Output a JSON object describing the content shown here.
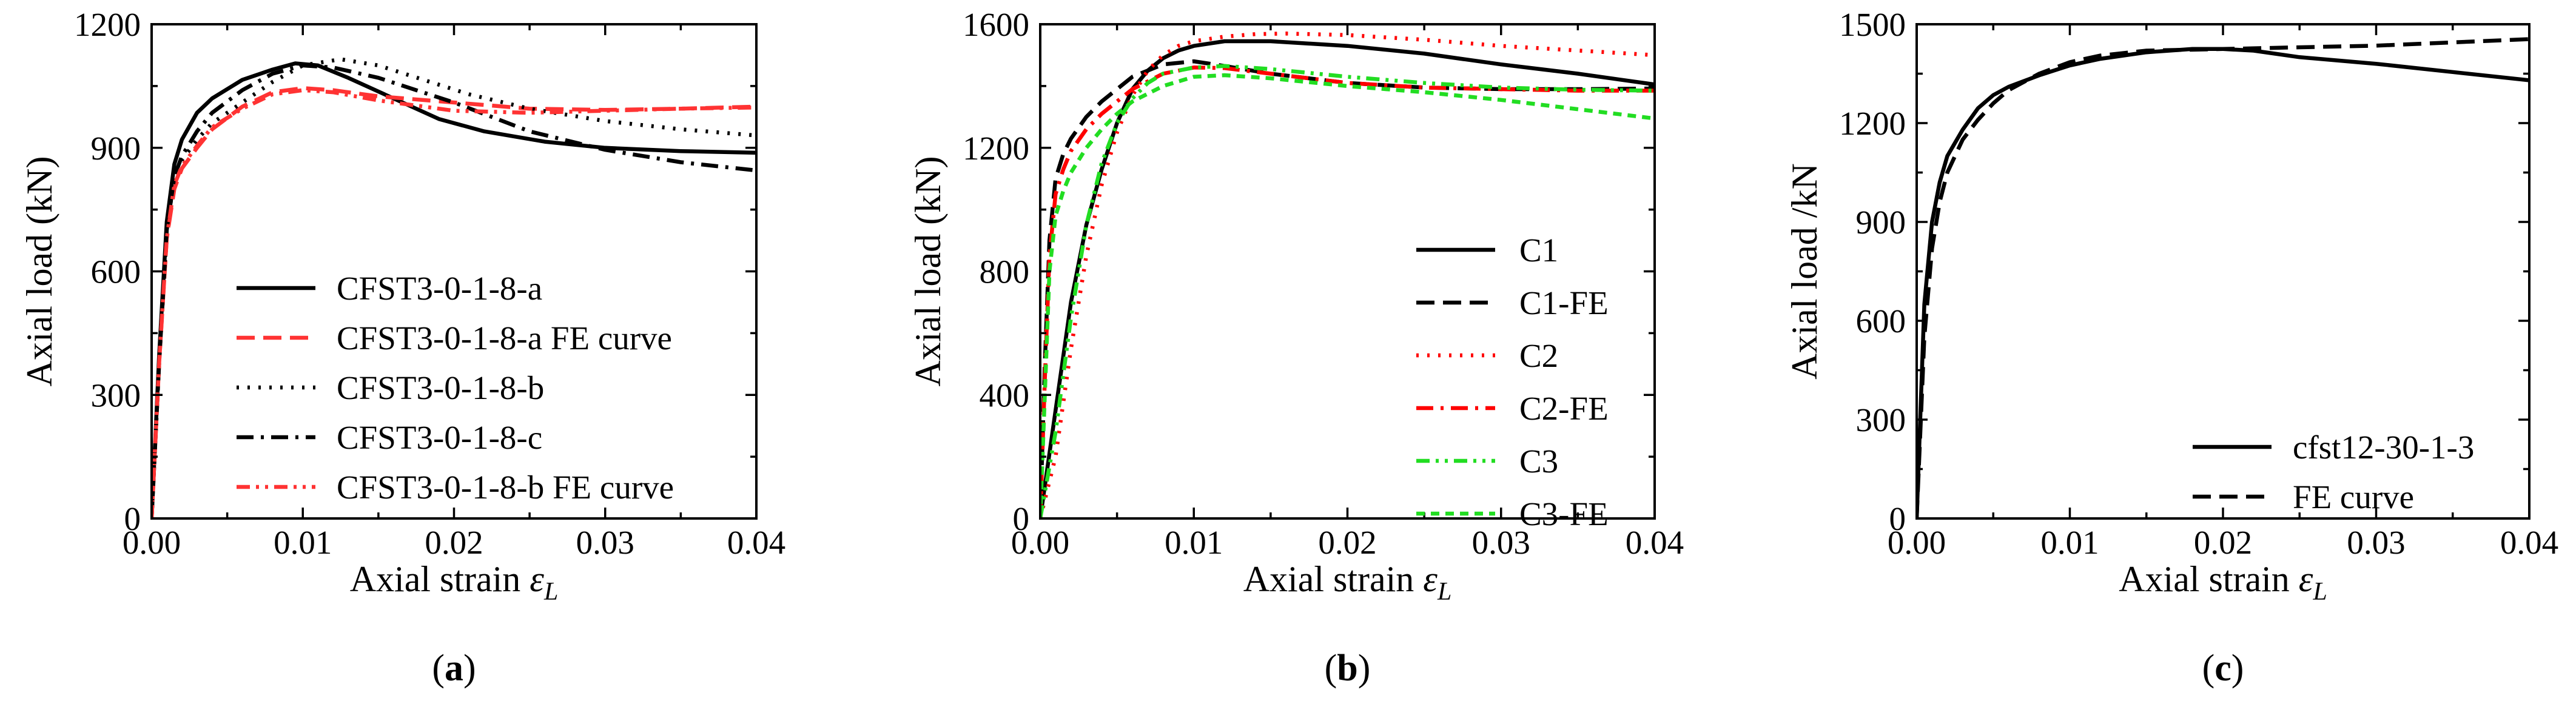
{
  "chart_data": [
    {
      "type": "line",
      "panel_label": "a",
      "xlabel": "Axial strain ",
      "xlabel_symbol": "ε",
      "xlabel_subscript": "L",
      "ylabel": "Axial load (kN)",
      "xlim": [
        0,
        0.04
      ],
      "ylim": [
        0,
        1200
      ],
      "x_ticks": [
        0,
        0.01,
        0.02,
        0.03,
        0.04
      ],
      "x_tick_labels": [
        "0.00",
        "0.01",
        "0.02",
        "0.03",
        "0.04"
      ],
      "y_ticks": [
        0,
        300,
        600,
        900,
        1200
      ],
      "y_tick_labels": [
        "0",
        "300",
        "600",
        "900",
        "1200"
      ],
      "legend_position": "bottom-right",
      "series": [
        {
          "name": "CFST3-0-1-8-a",
          "color": "#000000",
          "dash": "solid",
          "x": [
            0,
            0.0005,
            0.001,
            0.0015,
            0.002,
            0.003,
            0.004,
            0.006,
            0.008,
            0.0095,
            0.011,
            0.013,
            0.016,
            0.019,
            0.022,
            0.026,
            0.03,
            0.035,
            0.04
          ],
          "y": [
            0,
            400,
            720,
            860,
            920,
            985,
            1020,
            1065,
            1090,
            1105,
            1100,
            1070,
            1020,
            970,
            940,
            915,
            900,
            892,
            888
          ]
        },
        {
          "name": "CFST3-0-1-8-a FE curve",
          "color": "#ff3333",
          "dash": "long-dash",
          "x": [
            0,
            0.0005,
            0.001,
            0.0015,
            0.002,
            0.003,
            0.004,
            0.006,
            0.008,
            0.01,
            0.012,
            0.015,
            0.02,
            0.025,
            0.03,
            0.035,
            0.04
          ],
          "y": [
            0,
            380,
            680,
            800,
            850,
            900,
            945,
            1000,
            1035,
            1045,
            1040,
            1025,
            1010,
            995,
            992,
            995,
            1000
          ]
        },
        {
          "name": "CFST3-0-1-8-b",
          "color": "#000000",
          "dash": "dot",
          "x": [
            0,
            0.0005,
            0.001,
            0.0015,
            0.002,
            0.003,
            0.004,
            0.006,
            0.008,
            0.01,
            0.0125,
            0.015,
            0.018,
            0.021,
            0.025,
            0.03,
            0.035,
            0.04
          ],
          "y": [
            0,
            380,
            700,
            830,
            870,
            920,
            960,
            1010,
            1060,
            1100,
            1115,
            1100,
            1065,
            1030,
            995,
            965,
            945,
            930
          ]
        },
        {
          "name": "CFST3-0-1-8-c",
          "color": "#000000",
          "dash": "dash-dot",
          "x": [
            0,
            0.0005,
            0.001,
            0.0015,
            0.002,
            0.003,
            0.004,
            0.006,
            0.008,
            0.01,
            0.012,
            0.015,
            0.02,
            0.025,
            0.03,
            0.035,
            0.04
          ],
          "y": [
            0,
            380,
            700,
            830,
            880,
            940,
            985,
            1040,
            1080,
            1100,
            1095,
            1070,
            1010,
            940,
            895,
            865,
            845
          ]
        },
        {
          "name": "CFST3-0-1-8-b FE curve",
          "color": "#ff3333",
          "dash": "dash-dot-dot",
          "x": [
            0,
            0.0005,
            0.001,
            0.0015,
            0.002,
            0.003,
            0.004,
            0.006,
            0.008,
            0.01,
            0.012,
            0.015,
            0.02,
            0.025,
            0.03,
            0.035,
            0.04
          ],
          "y": [
            0,
            380,
            680,
            810,
            855,
            905,
            950,
            995,
            1030,
            1040,
            1035,
            1015,
            990,
            985,
            990,
            995,
            998
          ]
        }
      ]
    },
    {
      "type": "line",
      "panel_label": "b",
      "xlabel": "Axial strain ",
      "xlabel_symbol": "ε",
      "xlabel_subscript": "L",
      "ylabel": "Axial load (kN)",
      "xlim": [
        0,
        0.04
      ],
      "ylim": [
        0,
        1600
      ],
      "x_ticks": [
        0,
        0.01,
        0.02,
        0.03,
        0.04
      ],
      "x_tick_labels": [
        "0.00",
        "0.01",
        "0.02",
        "0.03",
        "0.04"
      ],
      "y_ticks": [
        0,
        400,
        800,
        1200,
        1600
      ],
      "y_tick_labels": [
        "0",
        "400",
        "800",
        "1200",
        "1600"
      ],
      "legend_position": "bottom-right",
      "series": [
        {
          "name": "C1",
          "color": "#000000",
          "dash": "solid",
          "x": [
            0,
            0.001,
            0.002,
            0.003,
            0.004,
            0.005,
            0.006,
            0.007,
            0.008,
            0.009,
            0.01,
            0.012,
            0.015,
            0.02,
            0.025,
            0.03,
            0.035,
            0.04
          ],
          "y": [
            0,
            350,
            700,
            950,
            1130,
            1280,
            1390,
            1450,
            1490,
            1515,
            1530,
            1545,
            1545,
            1530,
            1505,
            1470,
            1440,
            1405
          ]
        },
        {
          "name": "C1-FE",
          "color": "#000000",
          "dash": "long-dash",
          "x": [
            0,
            0.0003,
            0.0006,
            0.001,
            0.0015,
            0.002,
            0.003,
            0.004,
            0.005,
            0.006,
            0.008,
            0.01,
            0.012,
            0.015,
            0.02,
            0.025,
            0.03,
            0.035,
            0.04
          ],
          "y": [
            0,
            500,
            900,
            1100,
            1180,
            1230,
            1300,
            1350,
            1390,
            1430,
            1470,
            1480,
            1465,
            1440,
            1410,
            1395,
            1390,
            1390,
            1392
          ]
        },
        {
          "name": "C2",
          "color": "#ff0000",
          "dash": "dot",
          "x": [
            0,
            0.001,
            0.002,
            0.003,
            0.004,
            0.005,
            0.006,
            0.007,
            0.008,
            0.009,
            0.01,
            0.012,
            0.014,
            0.016,
            0.02,
            0.025,
            0.03,
            0.035,
            0.04
          ],
          "y": [
            0,
            200,
            550,
            850,
            1080,
            1250,
            1370,
            1450,
            1500,
            1530,
            1545,
            1560,
            1568,
            1570,
            1565,
            1550,
            1530,
            1515,
            1500
          ]
        },
        {
          "name": "C2-FE",
          "color": "#ff0000",
          "dash": "dash-dot",
          "x": [
            0,
            0.0003,
            0.0006,
            0.001,
            0.0015,
            0.002,
            0.003,
            0.004,
            0.005,
            0.006,
            0.008,
            0.01,
            0.012,
            0.015,
            0.02,
            0.025,
            0.03,
            0.035,
            0.04
          ],
          "y": [
            0,
            450,
            850,
            1050,
            1130,
            1190,
            1260,
            1310,
            1350,
            1390,
            1440,
            1460,
            1458,
            1440,
            1410,
            1395,
            1390,
            1385,
            1385
          ]
        },
        {
          "name": "C3",
          "color": "#22dd22",
          "dash": "dash-dot-dot",
          "x": [
            0,
            0.001,
            0.002,
            0.003,
            0.004,
            0.005,
            0.006,
            0.007,
            0.008,
            0.01,
            0.012,
            0.015,
            0.02,
            0.025,
            0.03,
            0.035,
            0.04
          ],
          "y": [
            0,
            280,
            650,
            950,
            1150,
            1280,
            1360,
            1410,
            1440,
            1460,
            1465,
            1455,
            1430,
            1410,
            1395,
            1388,
            1385
          ]
        },
        {
          "name": "C3-FE",
          "color": "#22dd22",
          "dash": "short-dash",
          "x": [
            0,
            0.0003,
            0.0006,
            0.001,
            0.0015,
            0.002,
            0.003,
            0.004,
            0.005,
            0.006,
            0.008,
            0.01,
            0.012,
            0.015,
            0.02,
            0.025,
            0.03,
            0.035,
            0.04
          ],
          "y": [
            0,
            400,
            800,
            980,
            1060,
            1120,
            1200,
            1260,
            1310,
            1350,
            1400,
            1430,
            1435,
            1425,
            1400,
            1380,
            1355,
            1325,
            1295
          ]
        }
      ]
    },
    {
      "type": "line",
      "panel_label": "c",
      "xlabel": "Axial strain ",
      "xlabel_symbol": "ε",
      "xlabel_subscript": "L",
      "ylabel": "Axial load /kN",
      "xlim": [
        0,
        0.04
      ],
      "ylim": [
        0,
        1500
      ],
      "x_ticks": [
        0,
        0.01,
        0.02,
        0.03,
        0.04
      ],
      "x_tick_labels": [
        "0.00",
        "0.01",
        "0.02",
        "0.03",
        "0.04"
      ],
      "y_ticks": [
        0,
        300,
        600,
        900,
        1200,
        1500
      ],
      "y_tick_labels": [
        "0",
        "300",
        "600",
        "900",
        "1200",
        "1500"
      ],
      "legend_position": "bottom-right",
      "series": [
        {
          "name": "cfst12-30-1-3",
          "color": "#000000",
          "dash": "solid",
          "x": [
            0,
            0.0005,
            0.001,
            0.0015,
            0.002,
            0.003,
            0.004,
            0.005,
            0.006,
            0.008,
            0.01,
            0.012,
            0.015,
            0.018,
            0.02,
            0.022,
            0.025,
            0.03,
            0.035,
            0.04
          ],
          "y": [
            0,
            650,
            900,
            1020,
            1100,
            1180,
            1245,
            1285,
            1310,
            1345,
            1375,
            1395,
            1415,
            1425,
            1425,
            1420,
            1400,
            1380,
            1355,
            1330
          ]
        },
        {
          "name": "FE curve",
          "color": "#000000",
          "dash": "long-dash",
          "x": [
            0,
            0.0005,
            0.001,
            0.0015,
            0.002,
            0.003,
            0.004,
            0.005,
            0.006,
            0.008,
            0.01,
            0.012,
            0.015,
            0.02,
            0.025,
            0.03,
            0.035,
            0.04
          ],
          "y": [
            0,
            550,
            820,
            960,
            1050,
            1150,
            1210,
            1260,
            1300,
            1350,
            1385,
            1405,
            1420,
            1425,
            1430,
            1435,
            1445,
            1455
          ]
        }
      ]
    }
  ]
}
